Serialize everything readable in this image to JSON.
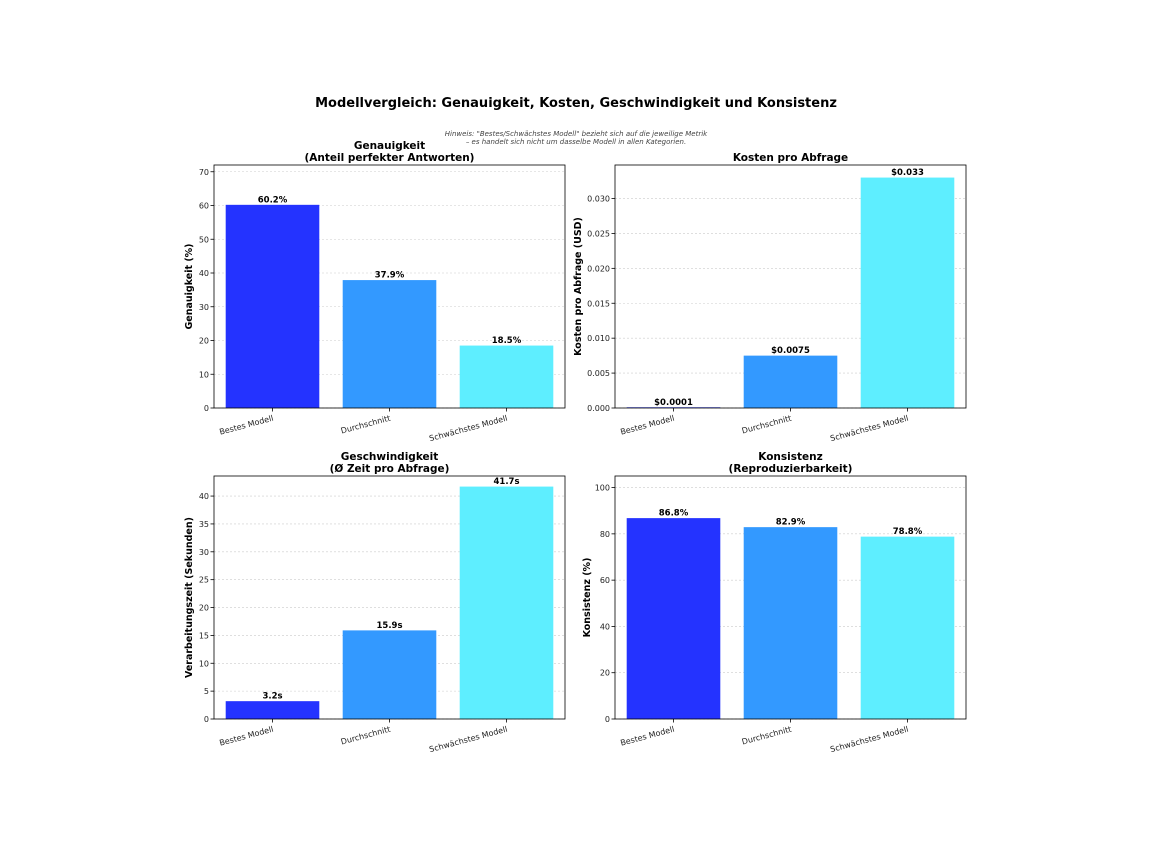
{
  "title": "Modellvergleich: Genauigkeit, Kosten, Geschwindigkeit und Konsistenz",
  "note": [
    "Hinweis: \"Bestes/Schwächstes Modell\" bezieht sich auf die jeweilige Metrik",
    "– es handelt sich nicht um dasselbe Modell in allen Kategorien."
  ],
  "colors": {
    "best": "#2433ff",
    "avg": "#3399ff",
    "weak": "#5eeeff"
  },
  "chart_data": [
    {
      "type": "bar",
      "title": [
        "Genauigkeit",
        "(Anteil perfekter Antworten)"
      ],
      "ylabel": "Genauigkeit (%)",
      "categories": [
        "Bestes Modell",
        "Durchschnitt",
        "Schwächstes Modell"
      ],
      "values": [
        60.2,
        37.9,
        18.5
      ],
      "value_labels": [
        "60.2%",
        "37.9%",
        "18.5%"
      ],
      "ylim": [
        0,
        72
      ],
      "yticks": [
        0,
        10,
        20,
        30,
        40,
        50,
        60,
        70
      ],
      "ytick_labels": [
        "0",
        "10",
        "20",
        "30",
        "40",
        "50",
        "60",
        "70"
      ],
      "grid": true
    },
    {
      "type": "bar",
      "title": [
        "Kosten pro Abfrage"
      ],
      "ylabel": "Kosten pro Abfrage (USD)",
      "categories": [
        "Bestes Modell",
        "Durchschnitt",
        "Schwächstes Modell"
      ],
      "values": [
        0.0001,
        0.0075,
        0.033
      ],
      "value_labels": [
        "$0.0001",
        "$0.0075",
        "$0.033"
      ],
      "ylim": [
        0,
        0.0348
      ],
      "yticks": [
        0,
        0.005,
        0.01,
        0.015,
        0.02,
        0.025,
        0.03
      ],
      "ytick_labels": [
        "0.000",
        "0.005",
        "0.010",
        "0.015",
        "0.020",
        "0.025",
        "0.030"
      ],
      "grid": true
    },
    {
      "type": "bar",
      "title": [
        "Geschwindigkeit",
        "(Ø Zeit pro Abfrage)"
      ],
      "ylabel": "Verarbeitungszeit (Sekunden)",
      "categories": [
        "Bestes Modell",
        "Durchschnitt",
        "Schwächstes Modell"
      ],
      "values": [
        3.2,
        15.9,
        41.7
      ],
      "value_labels": [
        "3.2s",
        "15.9s",
        "41.7s"
      ],
      "ylim": [
        0,
        43.6
      ],
      "yticks": [
        0,
        5,
        10,
        15,
        20,
        25,
        30,
        35,
        40
      ],
      "ytick_labels": [
        "0",
        "5",
        "10",
        "15",
        "20",
        "25",
        "30",
        "35",
        "40"
      ],
      "grid": true
    },
    {
      "type": "bar",
      "title": [
        "Konsistenz",
        "(Reproduzierbarkeit)"
      ],
      "ylabel": "Konsistenz (%)",
      "categories": [
        "Bestes Modell",
        "Durchschnitt",
        "Schwächstes Modell"
      ],
      "values": [
        86.8,
        82.9,
        78.8
      ],
      "value_labels": [
        "86.8%",
        "82.9%",
        "78.8%"
      ],
      "ylim": [
        0,
        105
      ],
      "yticks": [
        0,
        20,
        40,
        60,
        80,
        100
      ],
      "ytick_labels": [
        "0",
        "20",
        "40",
        "60",
        "80",
        "100"
      ],
      "grid": true
    }
  ]
}
